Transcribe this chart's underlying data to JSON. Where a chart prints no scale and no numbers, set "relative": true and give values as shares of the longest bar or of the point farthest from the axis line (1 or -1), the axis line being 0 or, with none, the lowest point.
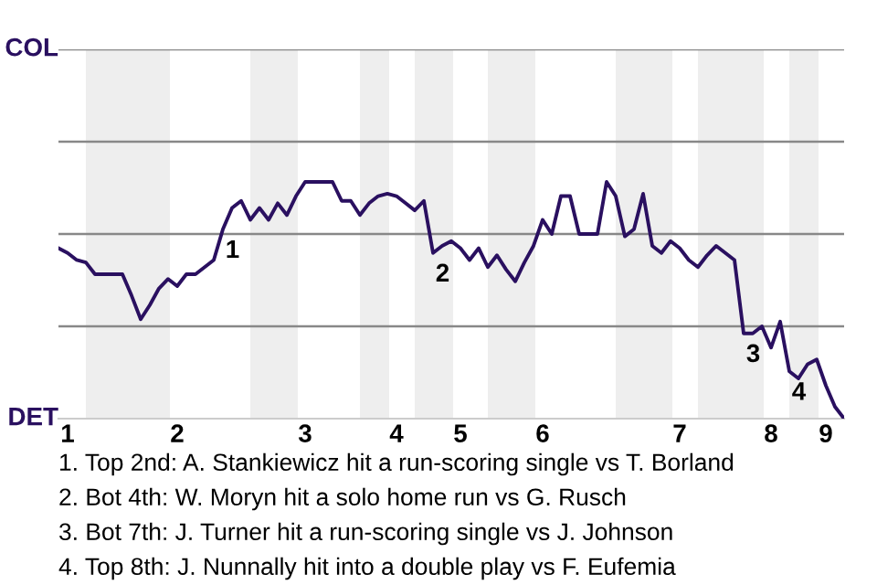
{
  "chart_data": {
    "type": "line",
    "relative": true,
    "categories": [
      null,
      "1",
      null,
      null,
      null,
      null,
      null,
      null,
      null,
      null,
      null,
      null,
      null,
      "2",
      null,
      null,
      null,
      null,
      null,
      null,
      null,
      null,
      null,
      null,
      null,
      null,
      null,
      "3",
      null,
      null,
      null,
      null,
      null,
      null,
      null,
      null,
      null,
      "4",
      null,
      null,
      null,
      null,
      null,
      null,
      "5",
      null,
      null,
      null,
      null,
      null,
      null,
      null,
      null,
      "6",
      null,
      null,
      null,
      null,
      null,
      null,
      null,
      null,
      null,
      null,
      null,
      null,
      null,
      null,
      "7",
      null,
      null,
      null,
      null,
      null,
      null,
      null,
      null,
      null,
      "8",
      null,
      null,
      null,
      null,
      null,
      "9",
      null,
      null
    ],
    "series": [
      {
        "color": "#2a1060",
        "values": [
          0.72,
          0.7,
          0.67,
          0.66,
          0.61,
          0.61,
          0.61,
          0.61,
          0.52,
          0.42,
          0.48,
          0.55,
          0.59,
          0.56,
          0.61,
          0.61,
          0.64,
          0.67,
          0.8,
          0.89,
          0.92,
          0.84,
          0.89,
          0.84,
          0.91,
          0.86,
          0.94,
          1,
          1,
          1,
          1,
          0.92,
          0.92,
          0.86,
          0.91,
          0.94,
          0.95,
          0.94,
          0.91,
          0.88,
          0.92,
          0.7,
          0.73,
          0.75,
          0.72,
          0.67,
          0.72,
          0.64,
          0.69,
          0.63,
          0.58,
          0.66,
          0.73,
          0.84,
          0.78,
          0.94,
          0.94,
          0.78,
          0.78,
          0.78,
          1,
          0.94,
          0.77,
          0.8,
          0.95,
          0.73,
          0.7,
          0.75,
          0.72,
          0.67,
          0.64,
          0.69,
          0.73,
          0.7,
          0.67,
          0.36,
          0.36,
          0.39,
          0.3,
          0.41,
          0.2,
          0.17,
          0.23,
          0.25,
          0.14,
          0.05,
          0
        ]
      }
    ],
    "marker": "none",
    "line_style": "solid",
    "ref_lines": [
      {
        "axis": "y",
        "value": 0.39,
        "color": "#888888"
      },
      {
        "axis": "y",
        "value": 0.78,
        "color": "#888888"
      },
      {
        "axis": "y",
        "value": 1.17,
        "color": "#888888"
      },
      {
        "axis": "y",
        "value": 1.56,
        "color": "#888888"
      }
    ],
    "annotations": [
      "COL",
      "DET",
      {
        "text": "1",
        "y": 0.8
      },
      {
        "text": "2",
        "y": 0.7
      },
      {
        "text": "3",
        "y": 0.36
      },
      {
        "text": "4",
        "y": 0.2
      },
      "1. Top 2nd: A. Stankiewicz hit a run-scoring single vs T. Borland",
      "2. Bot 4th: W. Moryn hit a solo home run vs G. Rusch",
      "3. Bot 7th: J. Turner hit a run-scoring single vs J. Johnson",
      "4. Top 8th: J. Nunnally hit into a double play vs F. Eufemia"
    ]
  }
}
